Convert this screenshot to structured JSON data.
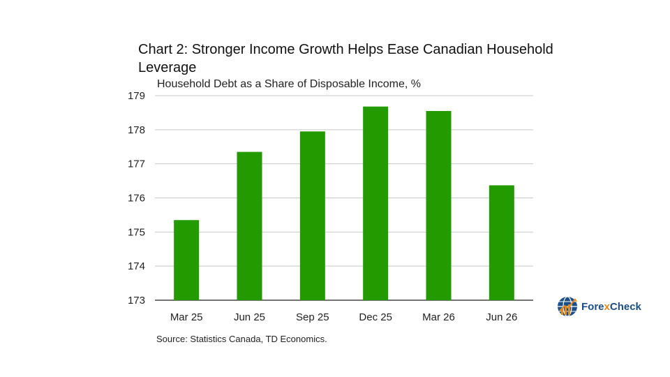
{
  "title": "Chart 2: Stronger Income Growth Helps Ease Canadian Household Leverage",
  "subtitle": "Household Debt as a Share of Disposable Income, %",
  "source": "Source: Statistics Canada, TD Economics.",
  "logo": {
    "part1": "Fore",
    "part2": "x",
    "part3": "Check"
  },
  "colors": {
    "bar": "#229a00",
    "grid": "#c8c8c8",
    "axis": "#222222"
  },
  "chart_data": {
    "type": "bar",
    "categories": [
      "Mar 25",
      "Jun 25",
      "Sep 25",
      "Dec 25",
      "Mar 26",
      "Jun 26"
    ],
    "values": [
      175.35,
      177.35,
      177.95,
      178.68,
      178.55,
      176.37
    ],
    "ylim": [
      173,
      179
    ],
    "yticks": [
      173,
      174,
      175,
      176,
      177,
      178,
      179
    ],
    "grid": true,
    "legend": "none"
  }
}
